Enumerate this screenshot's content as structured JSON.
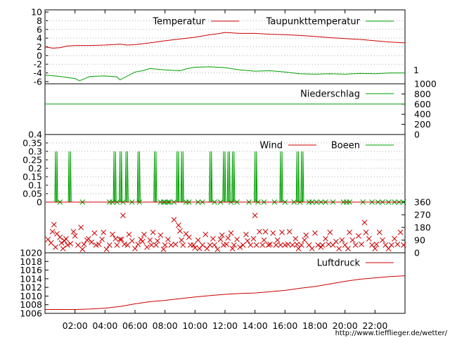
{
  "colors": {
    "temperature": "#cc0000",
    "dewpoint": "#00a000",
    "precipitation": "#00a000",
    "wind": "#cc0000",
    "gusts": "#00a000",
    "direction": "#cc0000",
    "pressure": "#cc0000",
    "grid": "#b0b0b0"
  },
  "time_labels": [
    "02:00",
    "04:00",
    "06:00",
    "08:00",
    "10:00",
    "12:00",
    "14:00",
    "16:00",
    "18:00",
    "20:00",
    "22:00"
  ],
  "footer_url": "http://www.tiefflieger.de/wetter/",
  "chart_data": [
    {
      "type": "line",
      "panel": "temperature",
      "x_unit": "hours",
      "xlim": [
        0,
        24
      ],
      "ylim": [
        -6.5,
        10.5
      ],
      "yticks": [
        10,
        8,
        6,
        4,
        2,
        0,
        -2,
        -4,
        -6
      ],
      "y_tick_labels": [
        "10",
        "8",
        "6",
        "4",
        "2",
        "0",
        "-2",
        "-4",
        "-6"
      ],
      "right_label": "1",
      "series": [
        {
          "name": "Temperatur",
          "x": [
            0,
            0.5,
            1,
            1.5,
            2,
            3,
            4,
            5,
            5.5,
            6,
            7,
            8,
            9,
            10,
            11,
            11.5,
            12,
            13,
            14,
            15,
            16,
            17,
            18,
            19,
            20,
            21,
            22,
            23,
            24
          ],
          "y": [
            2.0,
            1.7,
            1.8,
            2.2,
            2.3,
            2.3,
            2.4,
            2.6,
            2.4,
            2.5,
            2.9,
            3.4,
            3.8,
            4.2,
            4.8,
            5.0,
            5.3,
            5.1,
            5.1,
            4.9,
            4.8,
            4.6,
            4.4,
            4.1,
            3.9,
            3.7,
            3.4,
            3.1,
            2.9
          ]
        },
        {
          "name": "Taupunkttemperatur",
          "x": [
            0,
            1,
            2,
            2.3,
            3,
            4,
            4.8,
            5,
            6,
            6.5,
            7,
            8,
            9,
            9.5,
            10,
            11,
            12,
            13,
            14,
            15,
            16,
            17,
            18,
            19,
            20,
            21,
            22,
            23,
            24
          ],
          "y": [
            -4.5,
            -4.8,
            -5.3,
            -5.8,
            -4.8,
            -4.7,
            -4.9,
            -5.6,
            -3.8,
            -3.5,
            -3.0,
            -3.3,
            -3.5,
            -3.0,
            -2.7,
            -2.6,
            -2.8,
            -3.3,
            -3.6,
            -3.5,
            -3.8,
            -4.2,
            -4.3,
            -4.2,
            -4.3,
            -4.1,
            -4.2,
            -4.0,
            -4.0
          ]
        }
      ]
    },
    {
      "type": "line",
      "panel": "precipitation",
      "x_unit": "hours",
      "xlim": [
        0,
        24
      ],
      "ylim": [
        0,
        1000
      ],
      "right_yticks": [
        1000,
        800,
        600,
        400,
        200,
        0
      ],
      "right_tick_labels": [
        "1000",
        "800",
        "600",
        "400",
        "200",
        "0"
      ],
      "series": [
        {
          "name": "Niederschlag",
          "x": [
            0,
            24
          ],
          "y": [
            600,
            600
          ]
        }
      ]
    },
    {
      "type": "line",
      "panel": "wind",
      "x_unit": "hours",
      "xlim": [
        0,
        24
      ],
      "ylim": [
        0,
        0.4
      ],
      "yticks": [
        0.4,
        0.35,
        0.3,
        0.25,
        0.2,
        0.15,
        0.1,
        0.05,
        0
      ],
      "y_tick_labels": [
        "0.4",
        "0.35",
        "0.3",
        "0.25",
        "0.2",
        "0.15",
        "0.1",
        "0.05",
        "0"
      ],
      "series": [
        {
          "name": "Wind",
          "value": 0
        },
        {
          "name": "Boeen",
          "value": 0,
          "peak": 0.3,
          "spike_pairs": [
            [
              0.7,
              0.8
            ],
            [
              1.6,
              1.7
            ],
            [
              4.6,
              4.7
            ],
            [
              5.0,
              5.1
            ],
            [
              5.4,
              5.5
            ],
            [
              6.2,
              6.3
            ],
            [
              7.3,
              7.4
            ],
            [
              8.8,
              8.9
            ],
            [
              9.1,
              9.2
            ],
            [
              11.0,
              11.1
            ],
            [
              11.9,
              12.0
            ],
            [
              12.2,
              12.3
            ],
            [
              12.5,
              12.6
            ],
            [
              14.0,
              14.1
            ],
            [
              15.7,
              15.8
            ],
            [
              16.8,
              16.9
            ],
            [
              17.1,
              17.2
            ]
          ]
        }
      ],
      "zero_marks": [
        1.0,
        2.5,
        4.3,
        4.5,
        4.8,
        5.2,
        5.8,
        6.3,
        7.7,
        7.9,
        8.0,
        8.2,
        8.3,
        8.6,
        9.4,
        9.6,
        10.2,
        10.5,
        11.3,
        11.7,
        12.4,
        12.8,
        13.6,
        14.2,
        14.6,
        15.3,
        16.0,
        16.6,
        17.0,
        17.6,
        17.8,
        18.1,
        18.4,
        18.7,
        19.2,
        19.9,
        20.1,
        20.3,
        21.2,
        21.8,
        22.2,
        22.5,
        22.9,
        23.3,
        23.6,
        23.9
      ]
    },
    {
      "type": "scatter",
      "panel": "wind_direction",
      "x_unit": "hours",
      "xlim": [
        0,
        24
      ],
      "ylim": [
        0,
        360
      ],
      "right_yticks": [
        360,
        270,
        180,
        90,
        0
      ],
      "right_tick_labels": [
        "360",
        "270",
        "180",
        "90",
        "0"
      ],
      "points": [
        [
          0.2,
          95
        ],
        [
          0.4,
          70
        ],
        [
          0.5,
          150
        ],
        [
          0.6,
          200
        ],
        [
          0.7,
          40
        ],
        [
          0.8,
          135
        ],
        [
          1.0,
          110
        ],
        [
          1.1,
          70
        ],
        [
          1.2,
          30
        ],
        [
          1.3,
          85
        ],
        [
          1.4,
          100
        ],
        [
          1.5,
          55
        ],
        [
          1.7,
          65
        ],
        [
          1.9,
          150
        ],
        [
          2.0,
          120
        ],
        [
          2.2,
          55
        ],
        [
          2.4,
          180
        ],
        [
          2.5,
          25
        ],
        [
          2.6,
          60
        ],
        [
          2.8,
          90
        ],
        [
          2.9,
          100
        ],
        [
          3.1,
          75
        ],
        [
          3.3,
          140
        ],
        [
          3.4,
          55
        ],
        [
          3.6,
          60
        ],
        [
          3.8,
          95
        ],
        [
          3.9,
          145
        ],
        [
          4.1,
          25
        ],
        [
          4.3,
          55
        ],
        [
          4.5,
          130
        ],
        [
          4.7,
          100
        ],
        [
          4.8,
          55
        ],
        [
          5.0,
          95
        ],
        [
          5.1,
          95
        ],
        [
          5.2,
          265
        ],
        [
          5.3,
          60
        ],
        [
          5.5,
          55
        ],
        [
          5.6,
          130
        ],
        [
          5.8,
          85
        ],
        [
          6.0,
          30
        ],
        [
          6.2,
          60
        ],
        [
          6.4,
          95
        ],
        [
          6.5,
          80
        ],
        [
          6.6,
          130
        ],
        [
          6.8,
          40
        ],
        [
          7.0,
          90
        ],
        [
          7.1,
          55
        ],
        [
          7.2,
          145
        ],
        [
          7.4,
          55
        ],
        [
          7.5,
          85
        ],
        [
          7.7,
          125
        ],
        [
          7.9,
          25
        ],
        [
          8.0,
          55
        ],
        [
          8.2,
          95
        ],
        [
          8.4,
          55
        ],
        [
          8.6,
          235
        ],
        [
          8.7,
          60
        ],
        [
          8.9,
          195
        ],
        [
          9.0,
          155
        ],
        [
          9.1,
          90
        ],
        [
          9.2,
          55
        ],
        [
          9.4,
          135
        ],
        [
          9.6,
          110
        ],
        [
          9.7,
          55
        ],
        [
          9.9,
          55
        ],
        [
          10.0,
          35
        ],
        [
          10.2,
          90
        ],
        [
          10.3,
          30
        ],
        [
          10.5,
          55
        ],
        [
          10.7,
          130
        ],
        [
          10.8,
          30
        ],
        [
          11.0,
          55
        ],
        [
          11.2,
          100
        ],
        [
          11.3,
          55
        ],
        [
          11.5,
          25
        ],
        [
          11.7,
          95
        ],
        [
          11.8,
          125
        ],
        [
          11.9,
          55
        ],
        [
          12.1,
          60
        ],
        [
          12.2,
          105
        ],
        [
          12.4,
          140
        ],
        [
          12.5,
          30
        ],
        [
          12.6,
          55
        ],
        [
          12.8,
          95
        ],
        [
          13.0,
          40
        ],
        [
          13.2,
          55
        ],
        [
          13.4,
          130
        ],
        [
          13.5,
          85
        ],
        [
          13.7,
          55
        ],
        [
          13.9,
          100
        ],
        [
          14.0,
          265
        ],
        [
          14.1,
          55
        ],
        [
          14.3,
          150
        ],
        [
          14.5,
          55
        ],
        [
          14.6,
          90
        ],
        [
          14.7,
          150
        ],
        [
          14.9,
          55
        ],
        [
          15.0,
          60
        ],
        [
          15.2,
          140
        ],
        [
          15.4,
          55
        ],
        [
          15.5,
          90
        ],
        [
          15.7,
          55
        ],
        [
          15.8,
          145
        ],
        [
          16.0,
          55
        ],
        [
          16.2,
          60
        ],
        [
          16.3,
          150
        ],
        [
          16.5,
          55
        ],
        [
          16.7,
          100
        ],
        [
          16.8,
          60
        ],
        [
          16.9,
          30
        ],
        [
          17.1,
          55
        ],
        [
          17.3,
          90
        ],
        [
          17.4,
          125
        ],
        [
          17.6,
          55
        ],
        [
          17.8,
          30
        ],
        [
          18.0,
          140
        ],
        [
          18.2,
          55
        ],
        [
          18.4,
          40
        ],
        [
          18.5,
          55
        ],
        [
          18.7,
          100
        ],
        [
          18.9,
          60
        ],
        [
          19.0,
          145
        ],
        [
          19.2,
          55
        ],
        [
          19.4,
          80
        ],
        [
          19.6,
          30
        ],
        [
          19.8,
          90
        ],
        [
          20.0,
          55
        ],
        [
          20.2,
          30
        ],
        [
          20.3,
          145
        ],
        [
          20.5,
          90
        ],
        [
          20.7,
          55
        ],
        [
          20.9,
          120
        ],
        [
          21.1,
          60
        ],
        [
          21.3,
          215
        ],
        [
          21.4,
          145
        ],
        [
          21.6,
          100
        ],
        [
          21.8,
          55
        ],
        [
          22.0,
          30
        ],
        [
          22.1,
          60
        ],
        [
          22.3,
          145
        ],
        [
          22.5,
          90
        ],
        [
          22.7,
          55
        ],
        [
          22.9,
          30
        ],
        [
          23.1,
          55
        ],
        [
          23.3,
          100
        ],
        [
          23.5,
          60
        ],
        [
          23.7,
          145
        ],
        [
          23.9,
          55
        ]
      ]
    },
    {
      "type": "line",
      "panel": "pressure",
      "x_unit": "hours",
      "xlim": [
        0,
        24
      ],
      "ylim": [
        1006,
        1020
      ],
      "yticks": [
        1020,
        1018,
        1016,
        1014,
        1012,
        1010,
        1008,
        1006
      ],
      "y_tick_labels": [
        "1020",
        "1018",
        "1016",
        "1014",
        "1012",
        "1010",
        "1008",
        "1006"
      ],
      "series": [
        {
          "name": "Luftdruck",
          "x": [
            0,
            1,
            2,
            3,
            4,
            5,
            6,
            7,
            8,
            9,
            10,
            11,
            12,
            13,
            14,
            15,
            16,
            17,
            18,
            19,
            20,
            21,
            22,
            23,
            24
          ],
          "y": [
            1006.9,
            1006.9,
            1006.9,
            1007.0,
            1007.2,
            1007.6,
            1008.2,
            1008.7,
            1009.0,
            1009.4,
            1009.8,
            1010.1,
            1010.4,
            1010.6,
            1010.7,
            1011.0,
            1011.3,
            1011.8,
            1012.2,
            1012.8,
            1013.4,
            1013.9,
            1014.2,
            1014.5,
            1014.7
          ]
        }
      ]
    }
  ]
}
